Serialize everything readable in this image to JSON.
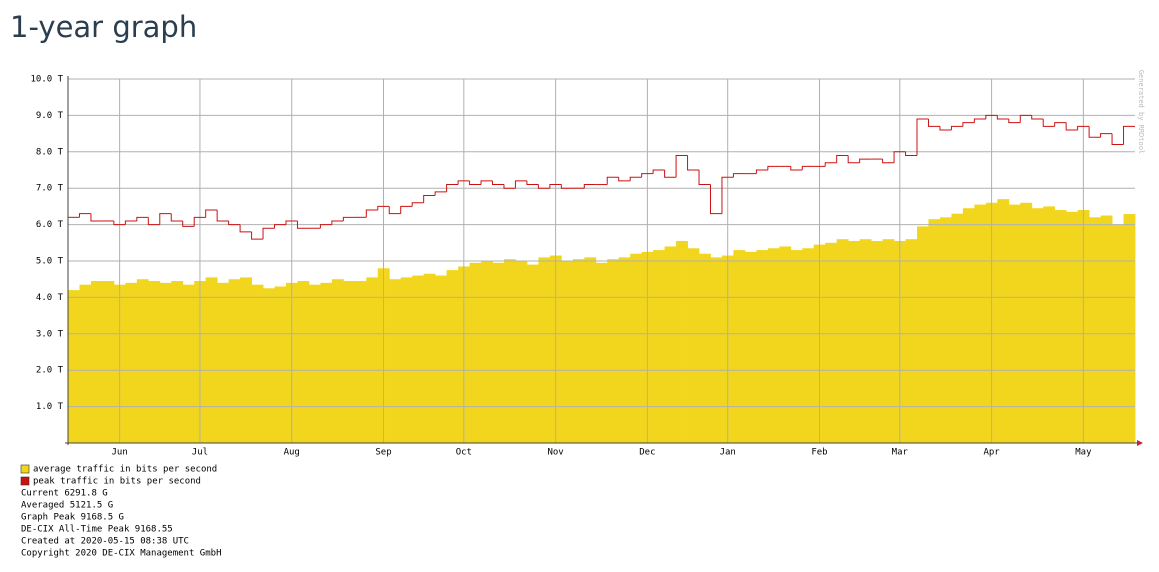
{
  "heading": "1-year graph",
  "chart_data": {
    "type": "bar",
    "side_note": "Generated by RRDtool",
    "categories": [
      null,
      null,
      null,
      null,
      "Jun",
      null,
      null,
      null,
      null,
      null,
      null,
      "Jul",
      null,
      null,
      null,
      null,
      null,
      null,
      null,
      "Aug",
      null,
      null,
      null,
      null,
      null,
      null,
      null,
      "Sep",
      null,
      null,
      null,
      null,
      null,
      null,
      "Oct",
      null,
      null,
      null,
      null,
      null,
      null,
      null,
      "Nov",
      null,
      null,
      null,
      null,
      null,
      null,
      null,
      "Dec",
      null,
      null,
      null,
      null,
      null,
      null,
      "Jan",
      null,
      null,
      null,
      null,
      null,
      null,
      null,
      "Feb",
      null,
      null,
      null,
      null,
      null,
      null,
      "Mar",
      null,
      null,
      null,
      null,
      null,
      null,
      null,
      "Apr",
      null,
      null,
      null,
      null,
      null,
      null,
      null,
      "May",
      null,
      null,
      null,
      null
    ],
    "series": [
      {
        "name": "average traffic in bits per second",
        "color": "#f2d61e",
        "style": "area",
        "values": [
          4.2,
          4.35,
          4.45,
          4.45,
          4.35,
          4.4,
          4.5,
          4.45,
          4.4,
          4.45,
          4.35,
          4.45,
          4.55,
          4.4,
          4.5,
          4.55,
          4.35,
          4.25,
          4.3,
          4.4,
          4.45,
          4.35,
          4.4,
          4.5,
          4.45,
          4.45,
          4.55,
          4.8,
          4.5,
          4.55,
          4.6,
          4.65,
          4.6,
          4.75,
          4.85,
          4.95,
          5.0,
          4.95,
          5.05,
          5.0,
          4.9,
          5.1,
          5.15,
          5.0,
          5.05,
          5.1,
          4.95,
          5.05,
          5.1,
          5.2,
          5.25,
          5.3,
          5.4,
          5.55,
          5.35,
          5.2,
          5.1,
          5.15,
          5.3,
          5.25,
          5.3,
          5.35,
          5.4,
          5.3,
          5.35,
          5.45,
          5.5,
          5.6,
          5.55,
          5.6,
          5.55,
          5.6,
          5.55,
          5.6,
          5.95,
          6.15,
          6.2,
          6.3,
          6.45,
          6.55,
          6.6,
          6.7,
          6.55,
          6.6,
          6.45,
          6.5,
          6.4,
          6.35,
          6.4,
          6.2,
          6.25,
          6.0,
          6.29
        ]
      },
      {
        "name": "peak traffic in bits per second",
        "color": "#cc1111",
        "style": "step",
        "values": [
          6.2,
          6.3,
          6.1,
          6.1,
          6.0,
          6.1,
          6.2,
          6.0,
          6.3,
          6.1,
          5.95,
          6.2,
          6.4,
          6.1,
          6.0,
          5.8,
          5.6,
          5.9,
          6.0,
          6.1,
          5.9,
          5.9,
          6.0,
          6.1,
          6.2,
          6.2,
          6.4,
          6.5,
          6.3,
          6.5,
          6.6,
          6.8,
          6.9,
          7.1,
          7.2,
          7.1,
          7.2,
          7.1,
          7.0,
          7.2,
          7.1,
          7.0,
          7.1,
          7.0,
          7.0,
          7.1,
          7.1,
          7.3,
          7.2,
          7.3,
          7.4,
          7.5,
          7.3,
          7.9,
          7.5,
          7.1,
          6.3,
          7.3,
          7.4,
          7.4,
          7.5,
          7.6,
          7.6,
          7.5,
          7.6,
          7.6,
          7.7,
          7.9,
          7.7,
          7.8,
          7.8,
          7.7,
          8.0,
          7.9,
          8.9,
          8.7,
          8.6,
          8.7,
          8.8,
          8.9,
          9.0,
          8.9,
          8.8,
          9.0,
          8.9,
          8.7,
          8.8,
          8.6,
          8.7,
          8.4,
          8.5,
          8.2,
          8.7
        ]
      }
    ],
    "ylim": [
      0,
      10
    ],
    "yticks": [
      {
        "value": 1,
        "label": "1.0 T"
      },
      {
        "value": 2,
        "label": "2.0 T"
      },
      {
        "value": 3,
        "label": "3.0 T"
      },
      {
        "value": 4,
        "label": "4.0 T"
      },
      {
        "value": 5,
        "label": "5.0 T"
      },
      {
        "value": 6,
        "label": "6.0 T"
      },
      {
        "value": 7,
        "label": "7.0 T"
      },
      {
        "value": 8,
        "label": "8.0 T"
      },
      {
        "value": 9,
        "label": "9.0 T"
      },
      {
        "value": 10,
        "label": "10.0 T"
      }
    ],
    "grid": true,
    "notes": [
      "Current 6291.8 G",
      "Averaged 5121.5 G",
      "Graph Peak 9168.5 G",
      "DE-CIX All-Time Peak 9168.55",
      "Created at 2020-05-15 08:38 UTC",
      "Copyright 2020 DE-CIX Management GmbH"
    ]
  }
}
